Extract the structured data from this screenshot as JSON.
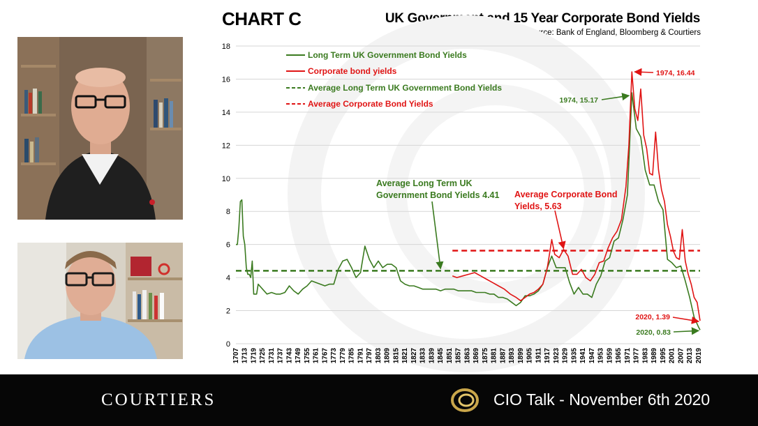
{
  "header": {
    "chart_label": "CHART C",
    "title": "UK Government and 15 Year Corporate Bond Yields",
    "source": "Source: Bank of England, Bloomberg & Courtiers"
  },
  "footer": {
    "brand": "COURTIERS",
    "session_title": "CIO Talk - November 6th 2020"
  },
  "participants": [
    {
      "role": "presenter-1"
    },
    {
      "role": "presenter-2"
    }
  ],
  "colors": {
    "gov": "#3a7a1f",
    "corp": "#e01414",
    "footer_bg": "#060606",
    "logo_gold": "#c9a64a"
  },
  "chart_data": {
    "type": "line",
    "title": "UK Government and 15 Year Corporate Bond Yields",
    "xlim": [
      1707,
      2020
    ],
    "ylim": [
      0,
      18
    ],
    "y_ticks": [
      0,
      2,
      4,
      6,
      8,
      10,
      12,
      14,
      16,
      18
    ],
    "x_tick_labels": [
      "1707",
      "1713",
      "1719",
      "1725",
      "1731",
      "1737",
      "1743",
      "1749",
      "1755",
      "1761",
      "1767",
      "1773",
      "1779",
      "1785",
      "1791",
      "1797",
      "1803",
      "1809",
      "1815",
      "1821",
      "1827",
      "1833",
      "1839",
      "1845",
      "1851",
      "1857",
      "1863",
      "1869",
      "1875",
      "1881",
      "1887",
      "1893",
      "1899",
      "1905",
      "1911",
      "1917",
      "1923",
      "1929",
      "1935",
      "1941",
      "1947",
      "1953",
      "1959",
      "1965",
      "1971",
      "1977",
      "1983",
      "1989",
      "1995",
      "2001",
      "2007",
      "2013",
      "2019"
    ],
    "grid": "horizontal",
    "legend_position": "top-left",
    "legend": [
      {
        "label": "Long Term UK Government Bond Yields",
        "style": "solid",
        "series": "gov"
      },
      {
        "label": "Corporate bond yields",
        "style": "solid",
        "series": "corp"
      },
      {
        "label": "Average Long Term UK Government Bond Yields",
        "style": "dashed",
        "series": "gov"
      },
      {
        "label": "Average Corporate Bond Yields",
        "style": "dashed",
        "series": "corp"
      }
    ],
    "series": [
      {
        "name": "Long Term UK Government Bond Yields",
        "key": "gov",
        "x": [
          1707,
          1708,
          1709,
          1710,
          1711,
          1712,
          1713,
          1714,
          1715,
          1716,
          1717,
          1718,
          1719,
          1720,
          1721,
          1722,
          1725,
          1728,
          1731,
          1734,
          1737,
          1740,
          1743,
          1746,
          1749,
          1752,
          1755,
          1758,
          1761,
          1764,
          1767,
          1770,
          1773,
          1776,
          1779,
          1782,
          1785,
          1788,
          1791,
          1794,
          1797,
          1800,
          1803,
          1806,
          1809,
          1812,
          1815,
          1818,
          1821,
          1824,
          1827,
          1830,
          1833,
          1836,
          1839,
          1842,
          1845,
          1848,
          1851,
          1854,
          1857,
          1860,
          1863,
          1866,
          1869,
          1872,
          1875,
          1878,
          1881,
          1884,
          1887,
          1890,
          1893,
          1896,
          1899,
          1902,
          1905,
          1908,
          1911,
          1914,
          1917,
          1920,
          1923,
          1926,
          1929,
          1932,
          1935,
          1938,
          1941,
          1944,
          1947,
          1950,
          1953,
          1956,
          1959,
          1962,
          1965,
          1968,
          1971,
          1974,
          1977,
          1980,
          1983,
          1986,
          1989,
          1992,
          1995,
          1998,
          2001,
          2004,
          2007,
          2010,
          2013,
          2016,
          2019,
          2020
        ],
        "values": [
          6.0,
          6.0,
          7.0,
          8.6,
          8.7,
          6.5,
          6.0,
          4.6,
          4.2,
          4.2,
          4.0,
          5.0,
          3.0,
          3.0,
          3.0,
          3.6,
          3.3,
          3.0,
          3.1,
          3.0,
          3.0,
          3.1,
          3.5,
          3.2,
          3.0,
          3.3,
          3.5,
          3.8,
          3.7,
          3.6,
          3.5,
          3.6,
          3.6,
          4.5,
          5.0,
          5.1,
          4.6,
          4.0,
          4.3,
          5.9,
          5.1,
          4.6,
          5.0,
          4.6,
          4.8,
          4.8,
          4.6,
          3.8,
          3.6,
          3.5,
          3.5,
          3.4,
          3.3,
          3.3,
          3.3,
          3.3,
          3.2,
          3.3,
          3.3,
          3.3,
          3.2,
          3.2,
          3.2,
          3.2,
          3.1,
          3.1,
          3.1,
          3.0,
          3.0,
          2.8,
          2.8,
          2.7,
          2.5,
          2.3,
          2.5,
          2.9,
          2.9,
          3.0,
          3.2,
          3.6,
          4.6,
          5.3,
          4.6,
          4.6,
          4.6,
          3.7,
          3.0,
          3.4,
          3.0,
          3.0,
          2.8,
          3.6,
          4.1,
          5.0,
          5.2,
          6.2,
          6.4,
          7.5,
          9.0,
          15.17,
          13.0,
          12.5,
          10.5,
          9.6,
          9.6,
          8.6,
          8.1,
          5.1,
          4.9,
          4.6,
          4.7,
          3.8,
          2.8,
          1.6,
          1.0,
          0.83
        ]
      },
      {
        "name": "Corporate bond yields",
        "key": "corp",
        "x": [
          1853,
          1856,
          1860,
          1864,
          1868,
          1872,
          1876,
          1880,
          1884,
          1888,
          1892,
          1896,
          1899,
          1902,
          1905,
          1908,
          1911,
          1914,
          1917,
          1920,
          1922,
          1925,
          1928,
          1931,
          1934,
          1937,
          1940,
          1943,
          1946,
          1949,
          1952,
          1955,
          1958,
          1961,
          1964,
          1967,
          1970,
          1972,
          1974,
          1976,
          1978,
          1980,
          1982,
          1984,
          1986,
          1988,
          1990,
          1992,
          1994,
          1996,
          1998,
          2000,
          2002,
          2004,
          2006,
          2008,
          2010,
          2012,
          2014,
          2016,
          2018,
          2020
        ],
        "values": [
          4.1,
          4.0,
          4.1,
          4.2,
          4.3,
          4.1,
          3.9,
          3.7,
          3.5,
          3.3,
          3.0,
          2.8,
          2.6,
          2.8,
          3.0,
          3.1,
          3.3,
          3.6,
          4.6,
          6.3,
          5.4,
          5.2,
          5.7,
          5.3,
          4.2,
          4.2,
          4.5,
          4.0,
          3.8,
          4.2,
          4.9,
          5.0,
          5.8,
          6.4,
          6.8,
          7.5,
          9.5,
          12.0,
          16.44,
          14.2,
          13.5,
          15.4,
          12.6,
          11.8,
          10.3,
          10.2,
          12.8,
          10.5,
          9.3,
          8.6,
          7.2,
          6.5,
          5.6,
          5.2,
          5.1,
          6.9,
          5.0,
          4.2,
          3.6,
          2.8,
          2.5,
          1.39
        ]
      },
      {
        "name": "Average Long Term UK Government Bond Yields",
        "key": "gov_avg",
        "x": [
          1707,
          2020
        ],
        "values": [
          4.41,
          4.41
        ]
      },
      {
        "name": "Average Corporate Bond Yields",
        "key": "corp_avg",
        "x": [
          1853,
          2020
        ],
        "values": [
          5.63,
          5.63
        ]
      }
    ],
    "annotations": [
      {
        "key": "gov_avg",
        "text_lines": [
          "Average Long Term UK",
          "Government Bond Yields 4.41"
        ],
        "x": 1845,
        "y": 4.41
      },
      {
        "key": "corp_avg",
        "text_lines": [
          "Average Corporate Bond",
          "Yields, 5.63"
        ],
        "x": 1927,
        "y": 5.63
      },
      {
        "key": "gov_1974",
        "text": "1974, 15.17",
        "x": 1974,
        "y": 15.17
      },
      {
        "key": "corp_1974",
        "text": "1974, 16.44",
        "x": 1974,
        "y": 16.44
      },
      {
        "key": "corp_2020",
        "text": "2020, 1.39",
        "x": 2020,
        "y": 1.39
      },
      {
        "key": "gov_2020",
        "text": "2020, 0.83",
        "x": 2020,
        "y": 0.83
      }
    ]
  }
}
